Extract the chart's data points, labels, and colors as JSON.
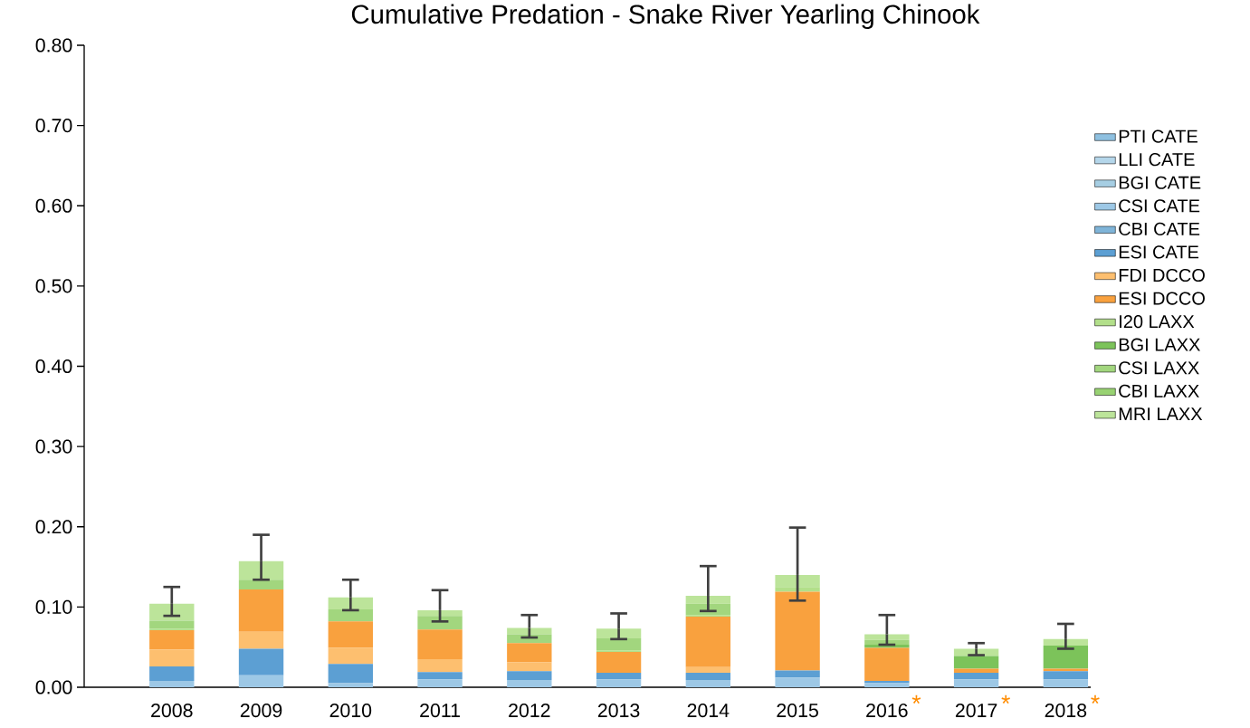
{
  "chart_data": {
    "type": "bar",
    "title": "Cumulative Predation - Snake River Yearling Chinook",
    "categories": [
      "2008",
      "2009",
      "2010",
      "2011",
      "2012",
      "2013",
      "2014",
      "2015",
      "2016",
      "2017",
      "2018"
    ],
    "stacked": true,
    "series": [
      {
        "name": "PTI CATE",
        "color": "#8ec0e0",
        "values": [
          0,
          0,
          0,
          0,
          0,
          0,
          0,
          0,
          0,
          0,
          0
        ]
      },
      {
        "name": "LLI CATE",
        "color": "#b4d6ea",
        "values": [
          0,
          0,
          0,
          0,
          0,
          0,
          0,
          0,
          0,
          0,
          0
        ]
      },
      {
        "name": "BGI CATE",
        "color": "#a6cee3",
        "values": [
          0,
          0,
          0,
          0,
          0,
          0,
          0,
          0,
          0,
          0,
          0
        ]
      },
      {
        "name": "CSI CATE",
        "color": "#9dc8e6",
        "values": [
          0.008,
          0.015,
          0.005,
          0.01,
          0.009,
          0.01,
          0.009,
          0.012,
          0.005,
          0.01,
          0.01
        ]
      },
      {
        "name": "CBI CATE",
        "color": "#7fb4d8",
        "values": [
          0,
          0,
          0,
          0,
          0,
          0,
          0,
          0,
          0,
          0,
          0
        ]
      },
      {
        "name": "ESI CATE",
        "color": "#5c9fd3",
        "values": [
          0.018,
          0.033,
          0.024,
          0.009,
          0.011,
          0.008,
          0.009,
          0.009,
          0.003,
          0.008,
          0.01
        ]
      },
      {
        "name": "FDI DCCO",
        "color": "#fdbf6f",
        "values": [
          0.021,
          0.021,
          0.02,
          0.016,
          0.011,
          0,
          0.007,
          0,
          0,
          0,
          0
        ]
      },
      {
        "name": "ESI DCCO",
        "color": "#f9a13e",
        "values": [
          0.024,
          0.053,
          0.033,
          0.037,
          0.024,
          0.026,
          0.063,
          0.098,
          0.041,
          0.005,
          0.003
        ]
      },
      {
        "name": "I20 LAXX",
        "color": "#b2df8a",
        "values": [
          0.002,
          0,
          0,
          0,
          0,
          0.002,
          0.002,
          0.006,
          0,
          0,
          0
        ]
      },
      {
        "name": "BGI LAXX",
        "color": "#7cc35a",
        "values": [
          0,
          0,
          0,
          0,
          0,
          0,
          0,
          0,
          0.004,
          0.016,
          0.029
        ]
      },
      {
        "name": "CSI LAXX",
        "color": "#a2d67e",
        "values": [
          0.01,
          0.012,
          0.015,
          0.017,
          0.011,
          0.015,
          0.014,
          0,
          0.006,
          0,
          0
        ]
      },
      {
        "name": "CBI LAXX",
        "color": "#98d272",
        "values": [
          0,
          0,
          0,
          0,
          0,
          0,
          0,
          0,
          0,
          0,
          0
        ]
      },
      {
        "name": "MRI LAXX",
        "color": "#bce49a",
        "values": [
          0.021,
          0.023,
          0.015,
          0.007,
          0.008,
          0.012,
          0.01,
          0.015,
          0.007,
          0.009,
          0.008
        ],
        "errors": [
          [
            0.089,
            0.125
          ],
          [
            0.134,
            0.19
          ],
          [
            0.096,
            0.134
          ],
          [
            0.082,
            0.121
          ],
          [
            0.062,
            0.09
          ],
          [
            0.06,
            0.092
          ],
          [
            0.095,
            0.151
          ],
          [
            0.108,
            0.199
          ],
          [
            0.053,
            0.09
          ],
          [
            0.04,
            0.055
          ],
          [
            0.048,
            0.079
          ]
        ]
      }
    ],
    "ylim": [
      0,
      0.8
    ],
    "yticks": [
      {
        "value": 0,
        "label": "0.00"
      },
      {
        "value": 0.1,
        "label": "0.10"
      },
      {
        "value": 0.2,
        "label": "0.20"
      },
      {
        "value": 0.3,
        "label": "0.30"
      },
      {
        "value": 0.4,
        "label": "0.40"
      },
      {
        "value": 0.5,
        "label": "0.50"
      },
      {
        "value": 0.6,
        "label": "0.60"
      },
      {
        "value": 0.7,
        "label": "0.70"
      },
      {
        "value": 0.8,
        "label": "0.80"
      }
    ],
    "grid": false,
    "legend": "right",
    "annotations": [
      "*",
      "*",
      "*"
    ]
  }
}
